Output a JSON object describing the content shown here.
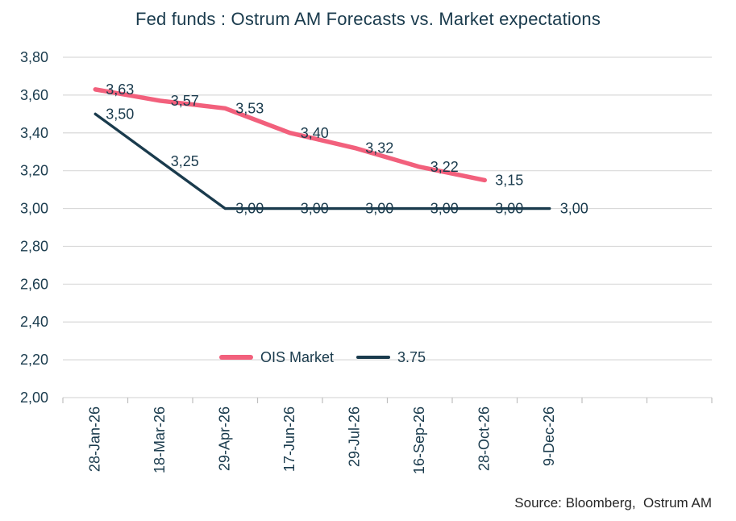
{
  "chart_data": {
    "type": "line",
    "title": "Fed funds : Ostrum AM Forecasts vs. Market expectations",
    "categories": [
      "28-Jan-26",
      "18-Mar-26",
      "29-Apr-26",
      "17-Jun-26",
      "29-Jul-26",
      "16-Sep-26",
      "28-Oct-26",
      "9-Dec-26"
    ],
    "x_axis_slots": 10,
    "series": [
      {
        "name": "OIS Market",
        "color": "#F2607C",
        "line_width": 5.5,
        "values": [
          3.63,
          3.57,
          3.53,
          3.4,
          3.32,
          3.22,
          3.15
        ]
      },
      {
        "name": "3.75",
        "color": "#1A3B4D",
        "line_width": 3.4,
        "values": [
          3.5,
          3.25,
          3.0,
          3.0,
          3.0,
          3.0,
          3.0,
          3.0
        ]
      }
    ],
    "ylim": [
      2.0,
      3.8
    ],
    "y_step": 0.2,
    "decimal_separator": ",",
    "grid": "horizontal",
    "data_labels": true,
    "legend_position": "bottom-center-overlay",
    "xlabel": "",
    "ylabel": ""
  },
  "source": "Source: Bloomberg,  Ostrum AM",
  "colors": {
    "text": "#1A3B4D",
    "gridline": "#D9D9D9",
    "tick": "#BFBFBF",
    "source_text": "#262626",
    "background": "#FFFFFF"
  }
}
